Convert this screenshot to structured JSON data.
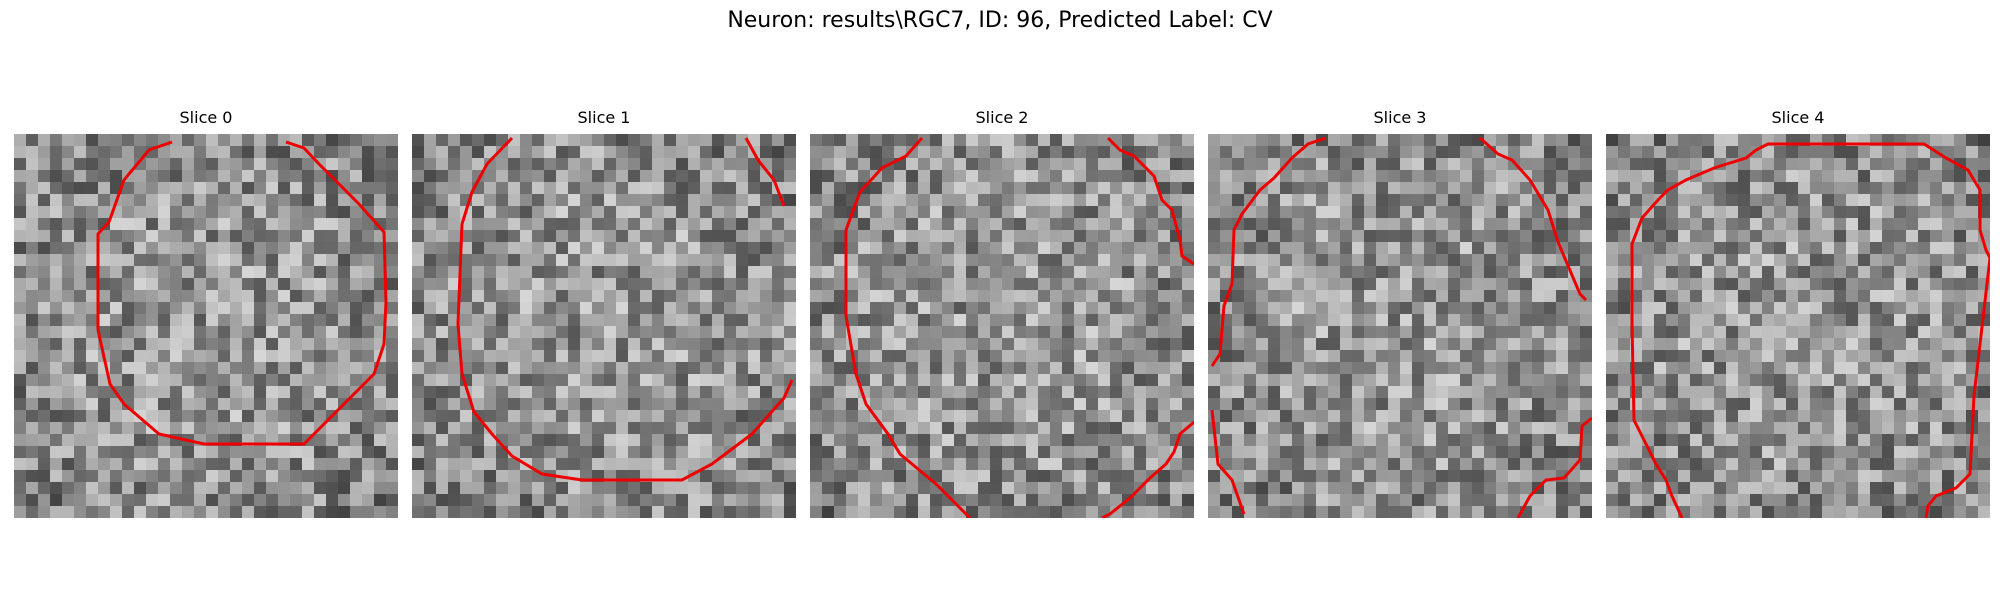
{
  "figure": {
    "title": "Neuron: results\\RGC7, ID: 96, Predicted Label: CV"
  },
  "panels": [
    {
      "title": "Slice 0"
    },
    {
      "title": "Slice 1"
    },
    {
      "title": "Slice 2"
    },
    {
      "title": "Slice 3"
    },
    {
      "title": "Slice 4"
    }
  ],
  "colors": {
    "contour": "#ee0000",
    "background": "#ffffff"
  }
}
